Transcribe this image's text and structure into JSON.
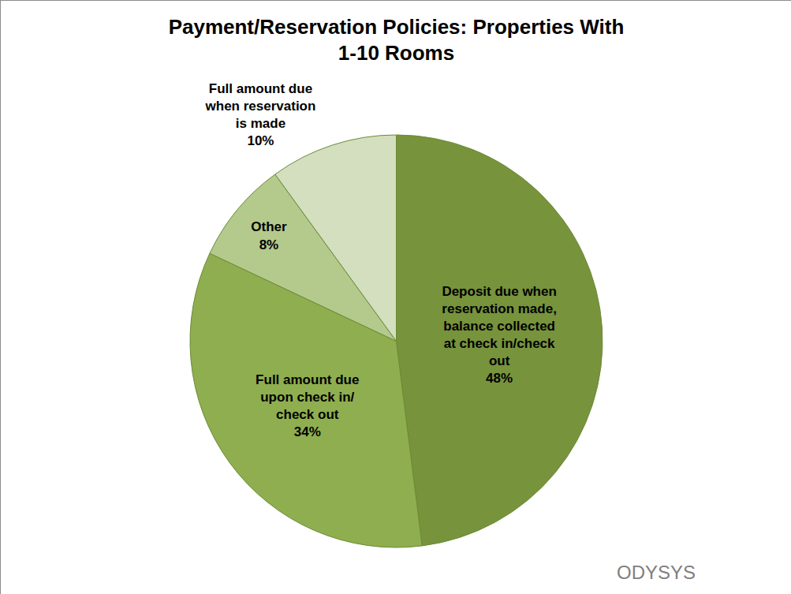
{
  "chart_data": {
    "type": "pie",
    "title": "Payment/Reservation Policies: Properties With 1-10 Rooms",
    "categories": [
      "Deposit due when reservation made, balance collected at check in/check out",
      "Full amount due upon check in/ check out",
      "Other",
      "Full amount due when reservation is made"
    ],
    "values": [
      48,
      34,
      8,
      10
    ],
    "value_labels": [
      "48%",
      "34%",
      "8%",
      "10%"
    ],
    "colors": [
      "#77933c",
      "#8fae4f",
      "#b4c98c",
      "#d3dfbf"
    ],
    "data_labels": true,
    "annotations": [
      {
        "text": "ODYSYS"
      }
    ]
  }
}
